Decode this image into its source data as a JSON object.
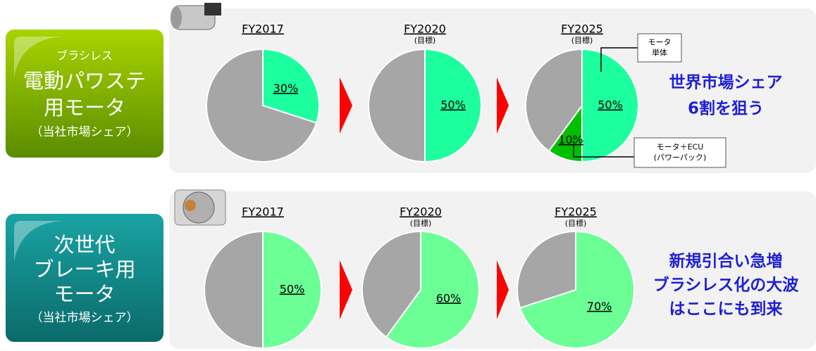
{
  "rows": [
    {
      "label_small": "ブラシレス",
      "label_lines": [
        "電動パワステ",
        "用モータ"
      ],
      "label_note": "（当社市場シェア）",
      "slogan": [
        "世界市場シェア",
        "6割を狙う"
      ]
    },
    {
      "label_lines": [
        "次世代",
        "ブレーキ用",
        "モータ"
      ],
      "label_note": "（当社市場シェア）",
      "slogan": [
        "新規引合い急増",
        "ブラシレス化の大波",
        "はここにも到来"
      ]
    }
  ],
  "chart_data": [
    {
      "type": "pie",
      "title": "FY2017",
      "values": [
        30,
        70
      ],
      "value_labels": [
        "30%",
        null
      ],
      "colors": [
        "#1dff9e",
        "#a6a6a6"
      ]
    },
    {
      "type": "pie",
      "title": "FY2020",
      "subtitle": "(目標)",
      "values": [
        50,
        50
      ],
      "value_labels": [
        "50%",
        null
      ],
      "colors": [
        "#1dff9e",
        "#a6a6a6"
      ]
    },
    {
      "type": "pie",
      "title": "FY2025",
      "subtitle": "(目標)",
      "values": [
        50,
        10,
        40
      ],
      "value_labels": [
        "50%",
        "10%",
        null
      ],
      "colors": [
        "#1dff9e",
        "#00c000",
        "#a6a6a6"
      ],
      "annotations": [
        {
          "lines": [
            "モータ",
            "単体"
          ]
        },
        {
          "lines": [
            "モータ＋ECU",
            "(パワーパック)"
          ]
        }
      ]
    },
    {
      "type": "pie",
      "title": "FY2017",
      "values": [
        50,
        50
      ],
      "value_labels": [
        "50%",
        null
      ],
      "colors": [
        "#6bff96",
        "#a6a6a6"
      ]
    },
    {
      "type": "pie",
      "title": "FY2020",
      "subtitle": "(目標)",
      "values": [
        60,
        40
      ],
      "value_labels": [
        "60%",
        null
      ],
      "colors": [
        "#6bff96",
        "#a6a6a6"
      ]
    },
    {
      "type": "pie",
      "title": "FY2025",
      "subtitle": "(目標)",
      "values": [
        70,
        30
      ],
      "value_labels": [
        "70%",
        null
      ],
      "colors": [
        "#6bff96",
        "#a6a6a6"
      ]
    }
  ]
}
